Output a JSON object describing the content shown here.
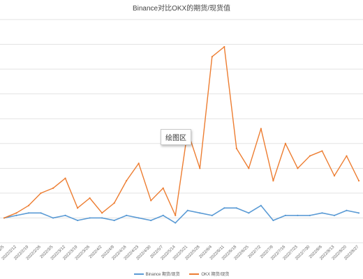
{
  "chart_data": {
    "type": "line",
    "title": "Binance对比OKX的期货/现货值",
    "xlabel": "",
    "ylabel": "",
    "tooltip": "绘图区",
    "grid": true,
    "legend_position": "bottom",
    "ylim": [
      0,
      9
    ],
    "x": [
      "2022/2/5",
      "2022/2/12",
      "2022/2/19",
      "2022/2/26",
      "2022/3/5",
      "2022/3/12",
      "2022/3/19",
      "2022/3/26",
      "2022/4/2",
      "2022/4/9",
      "2022/4/16",
      "2022/4/23",
      "2022/4/30",
      "2022/5/7",
      "2022/5/14",
      "2022/5/21",
      "2022/5/28",
      "2022/6/4",
      "2022/6/11",
      "2022/6/18",
      "2022/6/25",
      "2022/7/2",
      "2022/7/9",
      "2022/7/16",
      "2022/7/23",
      "2022/7/30",
      "2022/8/6",
      "2022/8/13",
      "2022/8/20",
      "2022/8/27"
    ],
    "series": [
      {
        "name": "Binance 期货/现货",
        "color": "#5b9bd5",
        "values": [
          1.0,
          1.1,
          1.2,
          1.2,
          1.0,
          1.1,
          0.9,
          1.0,
          1.0,
          0.9,
          1.1,
          1.0,
          0.9,
          1.1,
          0.8,
          1.3,
          1.2,
          1.1,
          1.4,
          1.4,
          1.2,
          1.5,
          0.9,
          1.1,
          1.1,
          1.1,
          1.2,
          1.1,
          1.3,
          1.2
        ]
      },
      {
        "name": "OKX 期货/现货",
        "color": "#ed7d31",
        "values": [
          1.0,
          1.2,
          1.5,
          2.0,
          2.2,
          2.6,
          1.4,
          1.8,
          1.2,
          1.6,
          2.5,
          3.2,
          1.7,
          2.2,
          1.1,
          4.5,
          3.0,
          7.5,
          7.9,
          3.8,
          3.0,
          4.6,
          2.5,
          4.0,
          3.0,
          3.5,
          3.7,
          2.7,
          3.5,
          2.5
        ]
      }
    ]
  }
}
